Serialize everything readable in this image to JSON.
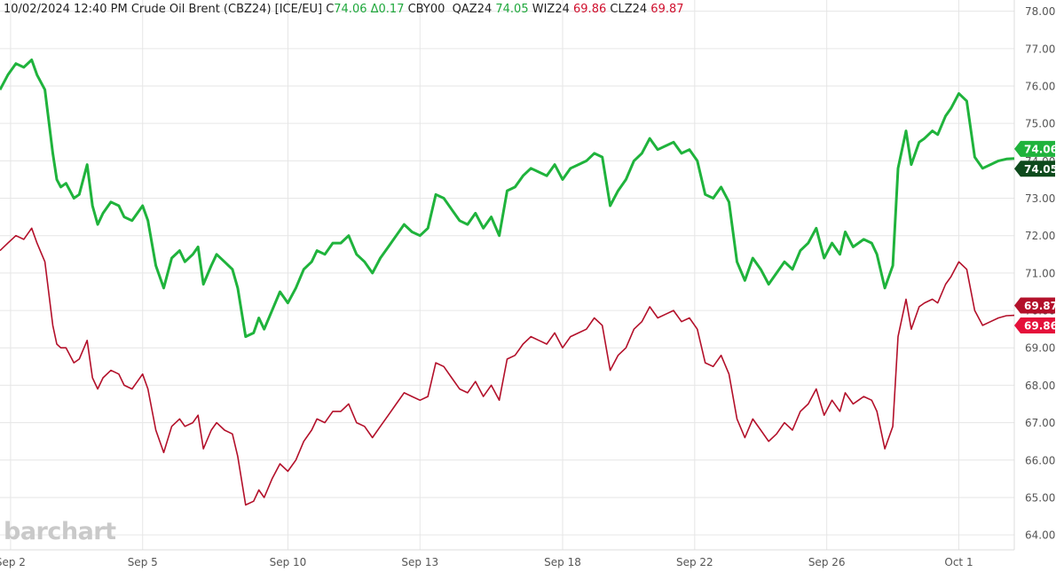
{
  "header": {
    "datetime": "10/02/2024 12:40 PM",
    "symbol_name": "Crude Oil Brent (CBZ24) [ICE/EU]",
    "close_prefix": "C",
    "close_value": "74.06",
    "change": "Δ0.17",
    "cby_label": "CBY00",
    "qaz_label": "QAZ24",
    "qaz_value": "74.05",
    "wiz_label": "WIZ24",
    "wiz_value": "69.86",
    "clz_label": "CLZ24",
    "clz_value": "69.87"
  },
  "watermark": "barchart",
  "colors": {
    "green": "#1fb33c",
    "dark_green": "#0d4a1c",
    "red": "#b3102a",
    "bright_red": "#e5103a",
    "grid": "#e6e6e6"
  },
  "chart_data": {
    "type": "line",
    "x_tick_labels": [
      "Sep 2",
      "Sep 5",
      "Sep 10",
      "Sep 13",
      "Sep 18",
      "Sep 22",
      "Sep 26",
      "Oct 1"
    ],
    "y_tick_labels": [
      "64.00",
      "65.00",
      "66.00",
      "67.00",
      "68.00",
      "69.00",
      "70.00",
      "71.00",
      "72.00",
      "73.00",
      "74.00",
      "75.00",
      "76.00",
      "77.00",
      "78.00"
    ],
    "ylim": [
      63.6,
      78.3
    ],
    "series": [
      {
        "name": "CBZ24",
        "color": "#1fb33c",
        "last_label": "74.06",
        "x": [
          0,
          0.3,
          0.6,
          0.9,
          1.2,
          1.4,
          1.7,
          2.0,
          2.15,
          2.3,
          2.5,
          2.8,
          3.0,
          3.3,
          3.5,
          3.7,
          3.9,
          4.2,
          4.5,
          4.7,
          5.0,
          5.2,
          5.4,
          5.6,
          5.9,
          6.2,
          6.5,
          6.8,
          7.0,
          7.3,
          7.5,
          7.7,
          8.0,
          8.2,
          8.5,
          8.8,
          9.0,
          9.3,
          9.6,
          9.8,
          10.0,
          10.3,
          10.6,
          10.9,
          11.2,
          11.5,
          11.8,
          12.0,
          12.3,
          12.6,
          12.9,
          13.2,
          13.5,
          13.8,
          14.1,
          14.4,
          14.7,
          15.0,
          15.3,
          15.6,
          15.9,
          16.2,
          16.5,
          16.8,
          17.1,
          17.4,
          17.7,
          18.0,
          18.3,
          18.6,
          18.9,
          19.2,
          19.5,
          19.8,
          20.1,
          20.4,
          20.7,
          21.0,
          21.3,
          21.6,
          21.9,
          22.2,
          22.5,
          22.8,
          23.1,
          23.4,
          23.7,
          24.0,
          24.3,
          24.6,
          24.9,
          25.2,
          25.5,
          25.8,
          26.1,
          26.4,
          26.7,
          27.0,
          27.3,
          27.6,
          27.9,
          28.2,
          28.5,
          28.8,
          29.1,
          29.4,
          29.7,
          30.0,
          30.3,
          30.6,
          30.9,
          31.2,
          31.5,
          31.8,
          32.0,
          32.3,
          32.5,
          32.7,
          33.0,
          33.2,
          33.5,
          33.8,
          34.0,
          34.3,
          34.5,
          34.8,
          35.0,
          35.3,
          35.5,
          35.8,
          36.0,
          36.3,
          36.6,
          36.9,
          37.2,
          37.5,
          37.8,
          38.1,
          38.4
        ],
        "y": [
          75.9,
          76.3,
          76.6,
          76.5,
          76.7,
          76.3,
          75.9,
          74.2,
          73.5,
          73.3,
          73.4,
          73.0,
          73.1,
          73.9,
          72.8,
          72.3,
          72.6,
          72.9,
          72.8,
          72.5,
          72.4,
          72.6,
          72.8,
          72.4,
          71.2,
          70.6,
          71.4,
          71.6,
          71.3,
          71.5,
          71.7,
          70.7,
          71.2,
          71.5,
          71.3,
          71.1,
          70.6,
          69.3,
          69.4,
          69.8,
          69.5,
          70.0,
          70.5,
          70.2,
          70.6,
          71.1,
          71.3,
          71.6,
          71.5,
          71.8,
          71.8,
          72.0,
          71.5,
          71.3,
          71.0,
          71.4,
          71.7,
          72.0,
          72.3,
          72.1,
          72.0,
          72.2,
          73.1,
          73.0,
          72.7,
          72.4,
          72.3,
          72.6,
          72.2,
          72.5,
          72.0,
          73.2,
          73.3,
          73.6,
          73.8,
          73.7,
          73.6,
          73.9,
          73.5,
          73.8,
          73.9,
          74.0,
          74.2,
          74.1,
          72.8,
          73.2,
          73.5,
          74.0,
          74.2,
          74.6,
          74.3,
          74.4,
          74.5,
          74.2,
          74.3,
          74.0,
          73.1,
          73.0,
          73.3,
          72.9,
          71.3,
          70.8,
          71.4,
          71.1,
          70.7,
          71.0,
          71.3,
          71.1,
          71.6,
          71.8,
          72.2,
          71.4,
          71.8,
          71.5,
          72.1,
          71.7,
          71.8,
          71.9,
          71.8,
          71.5,
          70.6,
          71.2,
          73.8,
          74.8,
          73.9,
          74.5,
          74.6,
          74.8,
          74.7,
          75.2,
          75.4,
          75.8,
          75.6,
          74.1,
          73.8,
          73.9,
          74.0,
          74.05,
          74.06
        ]
      },
      {
        "name": "CLZ24",
        "color": "#b3102a",
        "last_label": "69.87",
        "x": [
          0,
          0.3,
          0.6,
          0.9,
          1.2,
          1.4,
          1.7,
          2.0,
          2.15,
          2.3,
          2.5,
          2.8,
          3.0,
          3.3,
          3.5,
          3.7,
          3.9,
          4.2,
          4.5,
          4.7,
          5.0,
          5.2,
          5.4,
          5.6,
          5.9,
          6.2,
          6.5,
          6.8,
          7.0,
          7.3,
          7.5,
          7.7,
          8.0,
          8.2,
          8.5,
          8.8,
          9.0,
          9.3,
          9.6,
          9.8,
          10.0,
          10.3,
          10.6,
          10.9,
          11.2,
          11.5,
          11.8,
          12.0,
          12.3,
          12.6,
          12.9,
          13.2,
          13.5,
          13.8,
          14.1,
          14.4,
          14.7,
          15.0,
          15.3,
          15.6,
          15.9,
          16.2,
          16.5,
          16.8,
          17.1,
          17.4,
          17.7,
          18.0,
          18.3,
          18.6,
          18.9,
          19.2,
          19.5,
          19.8,
          20.1,
          20.4,
          20.7,
          21.0,
          21.3,
          21.6,
          21.9,
          22.2,
          22.5,
          22.8,
          23.1,
          23.4,
          23.7,
          24.0,
          24.3,
          24.6,
          24.9,
          25.2,
          25.5,
          25.8,
          26.1,
          26.4,
          26.7,
          27.0,
          27.3,
          27.6,
          27.9,
          28.2,
          28.5,
          28.8,
          29.1,
          29.4,
          29.7,
          30.0,
          30.3,
          30.6,
          30.9,
          31.2,
          31.5,
          31.8,
          32.0,
          32.3,
          32.5,
          32.7,
          33.0,
          33.2,
          33.5,
          33.8,
          34.0,
          34.3,
          34.5,
          34.8,
          35.0,
          35.3,
          35.5,
          35.8,
          36.0,
          36.3,
          36.6,
          36.9,
          37.2,
          37.5,
          37.8,
          38.1,
          38.4
        ],
        "y": [
          71.6,
          71.8,
          72.0,
          71.9,
          72.2,
          71.8,
          71.3,
          69.6,
          69.1,
          69.0,
          69.0,
          68.6,
          68.7,
          69.2,
          68.2,
          67.9,
          68.2,
          68.4,
          68.3,
          68.0,
          67.9,
          68.1,
          68.3,
          67.9,
          66.8,
          66.2,
          66.9,
          67.1,
          66.9,
          67.0,
          67.2,
          66.3,
          66.8,
          67.0,
          66.8,
          66.7,
          66.1,
          64.8,
          64.9,
          65.2,
          65.0,
          65.5,
          65.9,
          65.7,
          66.0,
          66.5,
          66.8,
          67.1,
          67.0,
          67.3,
          67.3,
          67.5,
          67.0,
          66.9,
          66.6,
          66.9,
          67.2,
          67.5,
          67.8,
          67.7,
          67.6,
          67.7,
          68.6,
          68.5,
          68.2,
          67.9,
          67.8,
          68.1,
          67.7,
          68.0,
          67.6,
          68.7,
          68.8,
          69.1,
          69.3,
          69.2,
          69.1,
          69.4,
          69.0,
          69.3,
          69.4,
          69.5,
          69.8,
          69.6,
          68.4,
          68.8,
          69.0,
          69.5,
          69.7,
          70.1,
          69.8,
          69.9,
          70.0,
          69.7,
          69.8,
          69.5,
          68.6,
          68.5,
          68.8,
          68.3,
          67.1,
          66.6,
          67.1,
          66.8,
          66.5,
          66.7,
          67.0,
          66.8,
          67.3,
          67.5,
          67.9,
          67.2,
          67.6,
          67.3,
          67.8,
          67.5,
          67.6,
          67.7,
          67.6,
          67.3,
          66.3,
          66.9,
          69.3,
          70.3,
          69.5,
          70.1,
          70.2,
          70.3,
          70.2,
          70.7,
          70.9,
          71.3,
          71.1,
          70.0,
          69.6,
          69.7,
          69.8,
          69.86,
          69.87
        ]
      }
    ],
    "markers": [
      {
        "label": "74.06",
        "value": 74.06,
        "color": "#1fb33c"
      },
      {
        "label": "74.05",
        "value": 74.05,
        "color": "#0d4a1c"
      },
      {
        "label": "69.87",
        "value": 69.87,
        "color": "#b3102a"
      },
      {
        "label": "69.86",
        "value": 69.86,
        "color": "#e5103a"
      }
    ],
    "grid": true
  }
}
